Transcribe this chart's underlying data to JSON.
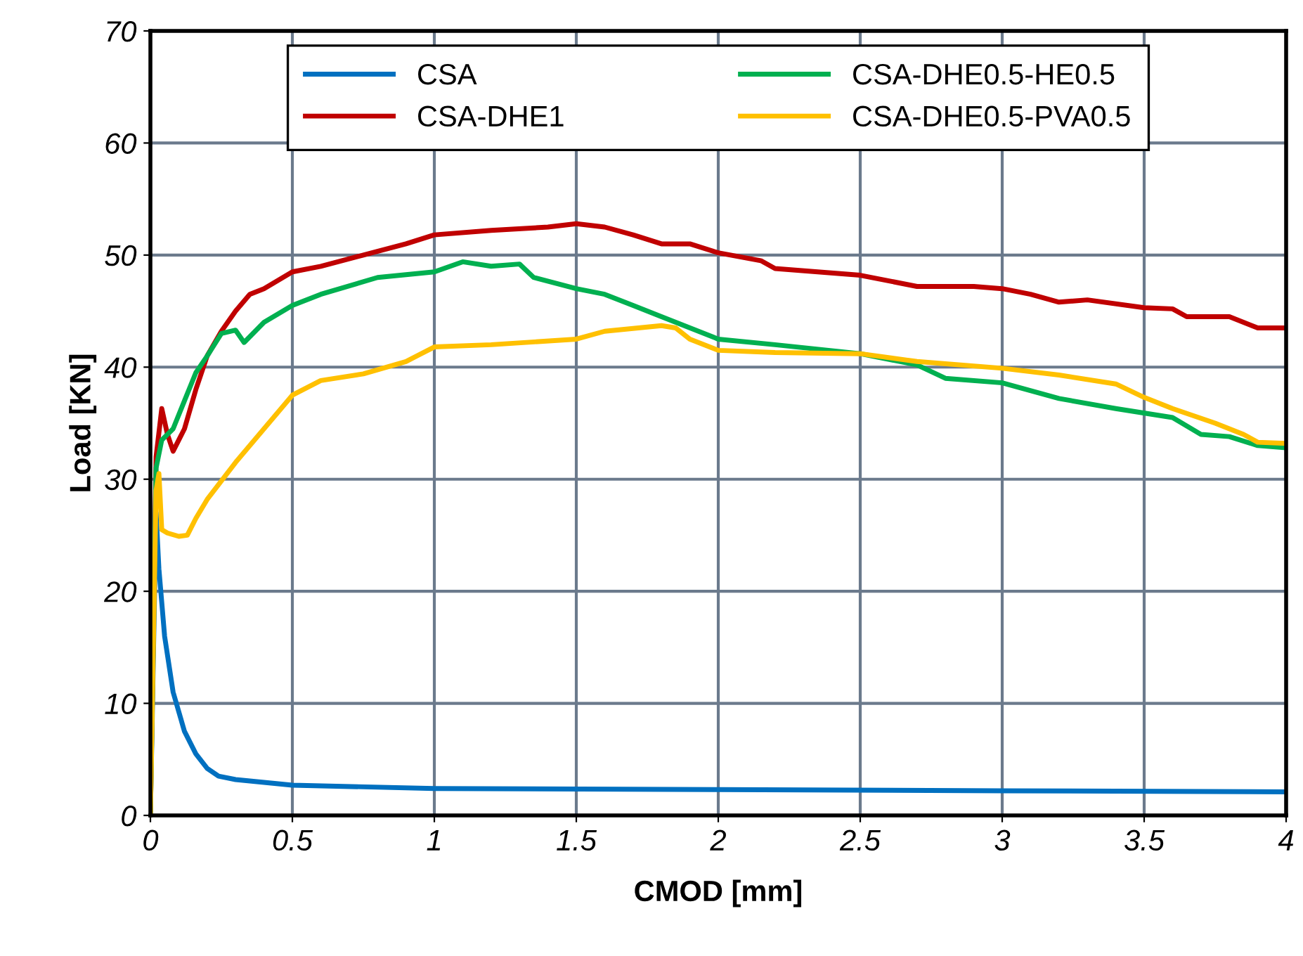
{
  "chart_data": {
    "type": "line",
    "xlabel": "CMOD [mm]",
    "ylabel": "Load [KN]",
    "xlim": [
      0,
      4
    ],
    "xticks": [
      0,
      0.5,
      1,
      1.5,
      2,
      2.5,
      3,
      3.5,
      4
    ],
    "ylim": [
      0,
      70
    ],
    "yticks": [
      0,
      10,
      20,
      30,
      40,
      50,
      60,
      70
    ],
    "grid": true,
    "legend": "top",
    "marker": "none",
    "line_style": "solid",
    "series": [
      {
        "name": "CSA",
        "color": "#0070c0",
        "x": [
          0,
          0.02,
          0.03,
          0.05,
          0.08,
          0.12,
          0.16,
          0.2,
          0.24,
          0.3,
          0.5,
          1,
          2,
          3,
          4
        ],
        "values": [
          0,
          27,
          22,
          16,
          11,
          7.5,
          5.5,
          4.2,
          3.5,
          3.2,
          2.7,
          2.4,
          2.3,
          2.2,
          2.1
        ]
      },
      {
        "name": "CSA-DHE1",
        "color": "#c00000",
        "x": [
          0,
          0.02,
          0.04,
          0.06,
          0.08,
          0.12,
          0.16,
          0.2,
          0.25,
          0.3,
          0.35,
          0.4,
          0.5,
          0.6,
          0.75,
          0.9,
          1,
          1.2,
          1.4,
          1.5,
          1.6,
          1.7,
          1.8,
          1.9,
          2,
          2.15,
          2.2,
          2.5,
          2.7,
          2.9,
          3,
          3.1,
          3.2,
          3.3,
          3.5,
          3.6,
          3.65,
          3.8,
          3.9,
          4
        ],
        "values": [
          0,
          32,
          36.3,
          34,
          32.5,
          34.5,
          38,
          41,
          43.2,
          45,
          46.5,
          47,
          48.5,
          49,
          50,
          51,
          51.8,
          52.2,
          52.5,
          52.8,
          52.5,
          51.8,
          51,
          51,
          50.2,
          49.5,
          48.8,
          48.2,
          47.2,
          47.2,
          47,
          46.5,
          45.8,
          46,
          45.3,
          45.2,
          44.5,
          44.5,
          43.5,
          43.5
        ]
      },
      {
        "name": "CSA-DHE0.5-HE0.5",
        "color": "#00b050",
        "x": [
          0,
          0.02,
          0.04,
          0.08,
          0.12,
          0.16,
          0.2,
          0.25,
          0.3,
          0.33,
          0.4,
          0.5,
          0.6,
          0.8,
          1,
          1.1,
          1.2,
          1.3,
          1.35,
          1.5,
          1.6,
          1.7,
          1.8,
          2,
          2.2,
          2.5,
          2.7,
          2.8,
          3,
          3.2,
          3.4,
          3.6,
          3.7,
          3.8,
          3.9,
          4
        ],
        "values": [
          0,
          31,
          33.5,
          34.5,
          37,
          39.5,
          41,
          43,
          43.3,
          42.2,
          44,
          45.5,
          46.5,
          48,
          48.5,
          49.4,
          49,
          49.2,
          48,
          47,
          46.5,
          45.5,
          44.5,
          42.5,
          42,
          41.2,
          40.2,
          39,
          38.6,
          37.2,
          36.3,
          35.5,
          34,
          33.8,
          33,
          32.8
        ]
      },
      {
        "name": "CSA-DHE0.5-PVA0.5",
        "color": "#ffc000",
        "x": [
          0,
          0.02,
          0.03,
          0.04,
          0.06,
          0.1,
          0.13,
          0.16,
          0.2,
          0.3,
          0.4,
          0.5,
          0.6,
          0.75,
          0.9,
          1,
          1.2,
          1.5,
          1.6,
          1.8,
          1.85,
          1.9,
          2,
          2.2,
          2.5,
          2.7,
          3,
          3.2,
          3.4,
          3.5,
          3.6,
          3.75,
          3.85,
          3.9,
          4
        ],
        "values": [
          0,
          29,
          30.5,
          25.5,
          25.2,
          24.9,
          25,
          26.5,
          28.2,
          31.5,
          34.5,
          37.5,
          38.8,
          39.4,
          40.5,
          41.8,
          42,
          42.5,
          43.2,
          43.7,
          43.5,
          42.5,
          41.5,
          41.3,
          41.2,
          40.5,
          39.9,
          39.3,
          38.5,
          37.3,
          36.3,
          35,
          34,
          33.3,
          33.2
        ]
      }
    ]
  }
}
